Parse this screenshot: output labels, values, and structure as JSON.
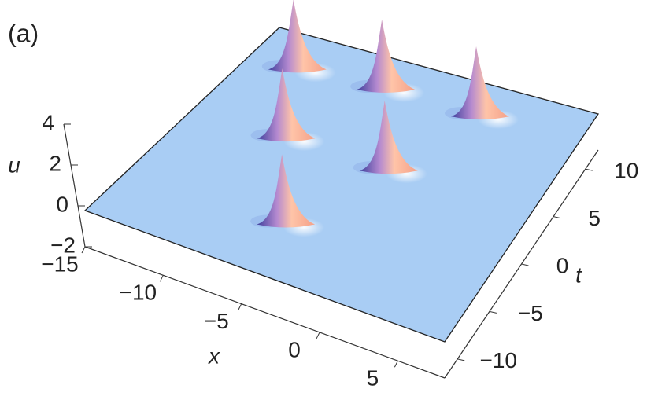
{
  "chart_data": {
    "type": "surface3d",
    "panel_label": "(a)",
    "xlabel": "x",
    "ylabel": "t",
    "zlabel": "u",
    "xlim": [
      -15,
      8
    ],
    "ylim": [
      -12,
      12
    ],
    "zlim": [
      -2,
      4
    ],
    "xticks": [
      {
        "value": -15,
        "label": "−15"
      },
      {
        "value": -10,
        "label": "−10"
      },
      {
        "value": -5,
        "label": "−5"
      },
      0,
      5
    ],
    "yticks": [
      {
        "value": -10,
        "label": "−10"
      },
      {
        "value": -5,
        "label": "−5"
      },
      0,
      5,
      10
    ],
    "zticks": [
      {
        "value": -2,
        "label": "−2"
      },
      0,
      2,
      4
    ],
    "surface_color": "#a9cdf4",
    "peaks": {
      "x": [
        -12,
        -6,
        0.7,
        -9,
        -2,
        -5
      ],
      "t": [
        8.5,
        9,
        9,
        1.5,
        1.5,
        -6.5
      ],
      "u": [
        3.7,
        3.7,
        3.7,
        3.7,
        3.7,
        3.7
      ]
    }
  }
}
